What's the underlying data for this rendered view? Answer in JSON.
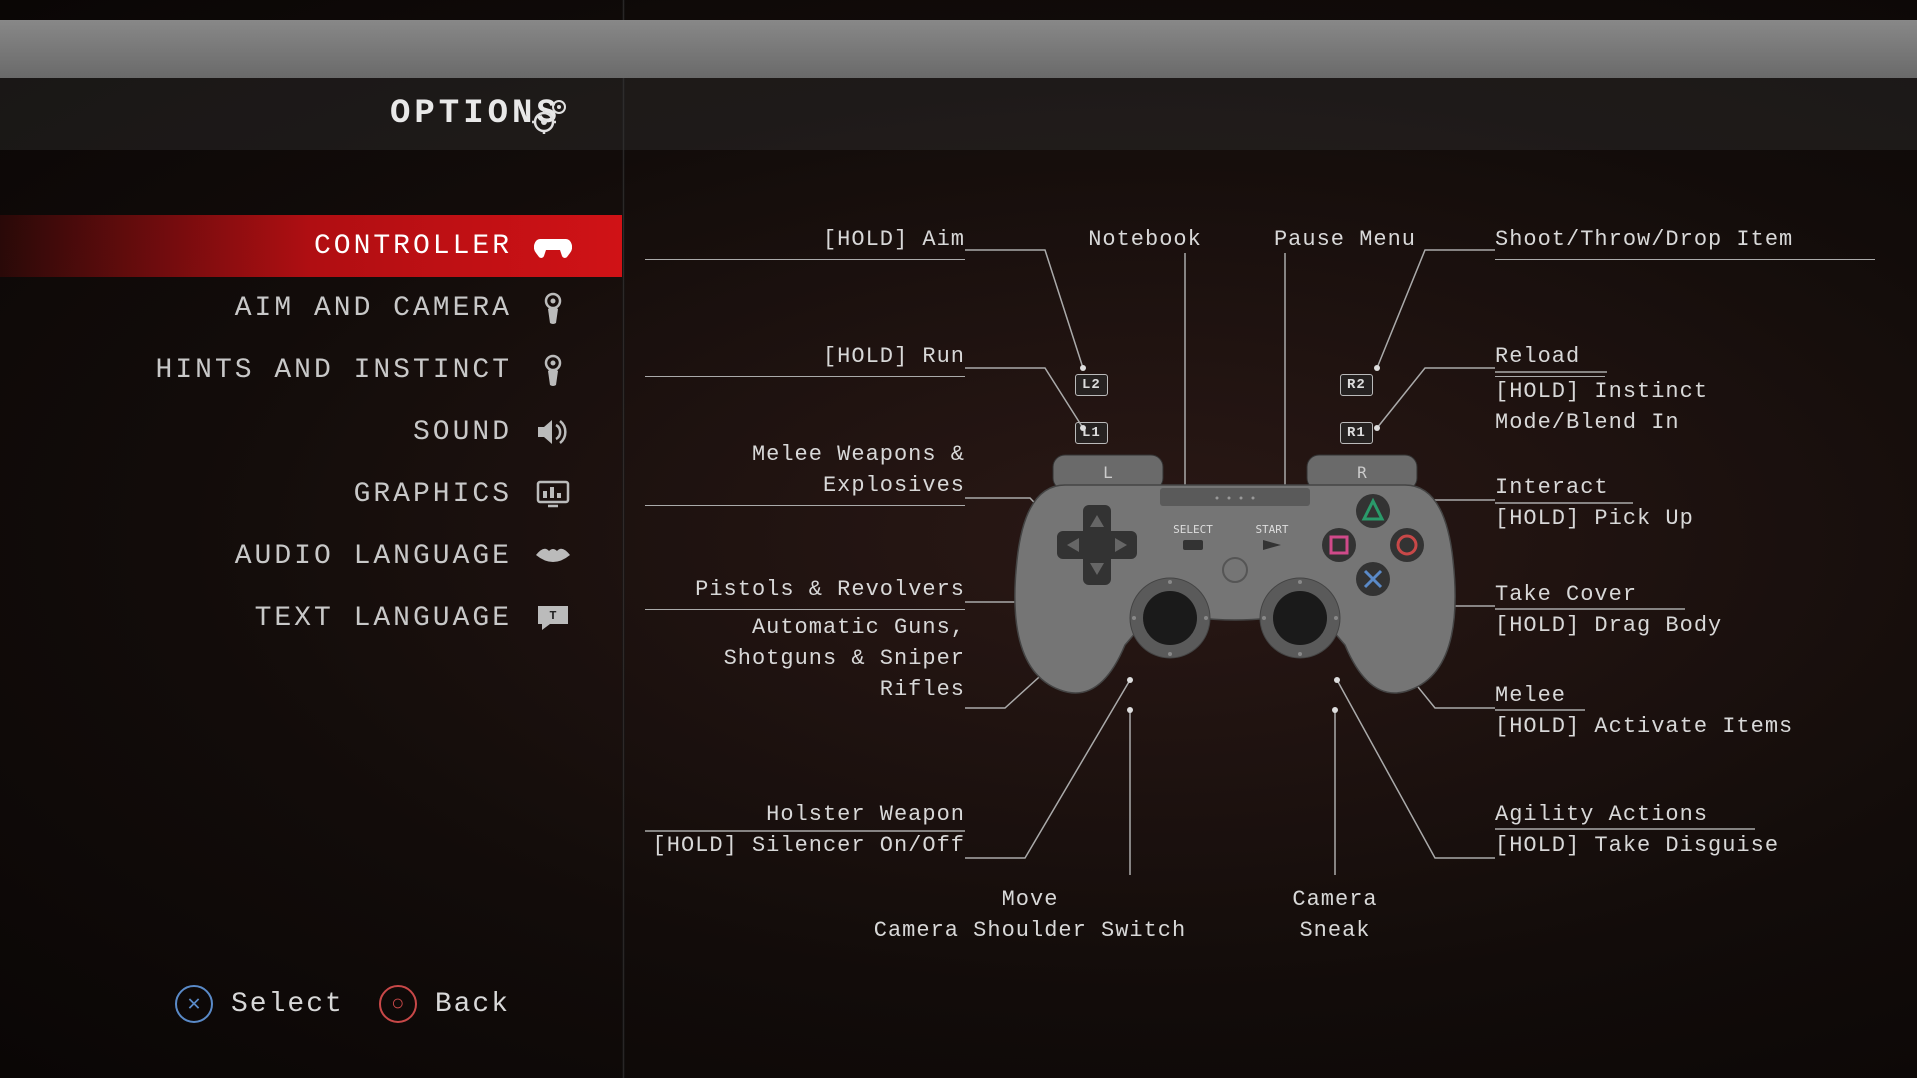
{
  "header": {
    "title": "OPTIONS"
  },
  "sidebar": {
    "items": [
      {
        "label": "CONTROLLER",
        "icon": "controller",
        "active": true
      },
      {
        "label": "AIM AND CAMERA",
        "icon": "aim",
        "active": false
      },
      {
        "label": "HINTS AND INSTINCT",
        "icon": "instinct",
        "active": false
      },
      {
        "label": "SOUND",
        "icon": "sound",
        "active": false
      },
      {
        "label": "GRAPHICS",
        "icon": "graphics",
        "active": false
      },
      {
        "label": "AUDIO LANGUAGE",
        "icon": "lips",
        "active": false
      },
      {
        "label": "TEXT LANGUAGE",
        "icon": "text",
        "active": false
      }
    ]
  },
  "footer": {
    "select_label": "Select",
    "back_label": "Back"
  },
  "colors": {
    "active_red": "#d01216",
    "text": "#d8d8d8",
    "line": "#aaaaaa",
    "ps_blue": "#5a8ac8",
    "ps_red": "#c84848",
    "ps_pink": "#d04a8a",
    "ps_green": "#2a9a6a",
    "controller_body": "#757575",
    "controller_dark": "#222222"
  },
  "controller": {
    "shoulder_labels": {
      "l2": "L2",
      "l1": "L1",
      "r2": "R2",
      "r1": "R1"
    },
    "face_labels": {
      "select": "SELECT",
      "start": "START",
      "l_bumper": "L",
      "r_bumper": "R"
    }
  },
  "callouts": {
    "l2": "[HOLD] Aim",
    "l1": "[HOLD] Run",
    "dpad_up": "Melee Weapons &\nExplosives",
    "dpad_left": "Pistols & Revolvers",
    "dpad_down": "Automatic Guns,\nShotguns & Sniper\nRifles",
    "l3": "Holster Weapon\n[HOLD] Silencer On/Off",
    "left_stick": "Move\nCamera Shoulder Switch",
    "select": "Notebook",
    "start": "Pause Menu",
    "r2": "Shoot/Throw/Drop Item",
    "r1": "Reload\n[HOLD] Instinct\nMode/Blend In",
    "triangle": "Interact\n[HOLD] Pick Up",
    "circle": "Take Cover\n[HOLD] Drag Body",
    "cross": "Melee\n[HOLD] Activate Items",
    "r3": "Agility Actions\n[HOLD] Take Disguise",
    "right_stick": "Camera\nSneak"
  }
}
